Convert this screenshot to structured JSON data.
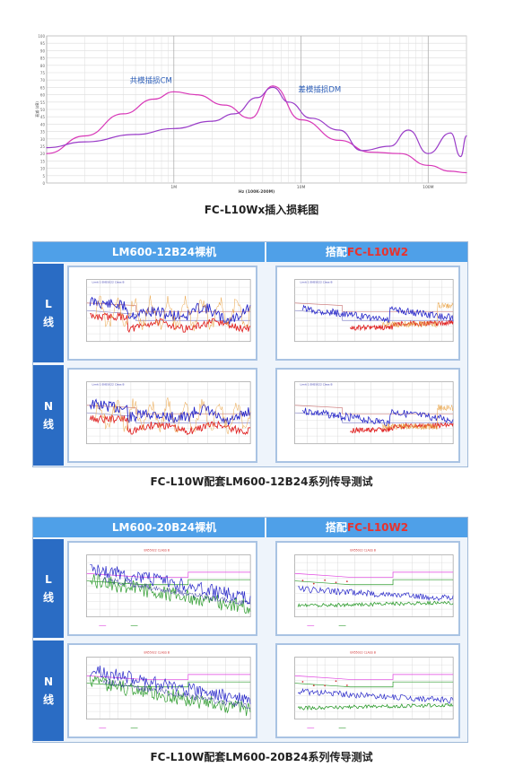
{
  "insertion_loss": {
    "caption": "FC-L10Wx插入损耗图",
    "cm_label": "共模插损CM",
    "dm_label": "差模插损DM",
    "x_label": "Hz (100K-200M)",
    "y_label": "衰减 (dB)",
    "x_ticks": [
      "1M",
      "10M",
      "100M"
    ],
    "y_ticks": [
      "100",
      "95",
      "90",
      "85",
      "80",
      "75",
      "70",
      "65",
      "60",
      "55",
      "50",
      "45",
      "40",
      "35",
      "30",
      "25",
      "20",
      "15",
      "10",
      "5",
      "0"
    ]
  },
  "table1": {
    "caption": "FC-L10W配套LM600-12B24系列传导测试",
    "col1_header": "LM600-12B24裸机",
    "col2_header_prefix": "搭配",
    "col2_header_model": "FC-L10W2",
    "row1_label": [
      "L",
      "线"
    ],
    "row2_label": [
      "N",
      "线"
    ]
  },
  "table2": {
    "caption": "FC-L10W配套LM600-20B24系列传导测试",
    "col1_header": "LM600-20B24裸机",
    "col2_header_prefix": "搭配",
    "col2_header_model": "FC-L10W2",
    "row1_label": [
      "L",
      "线"
    ],
    "row2_label": [
      "N",
      "线"
    ]
  },
  "colors": {
    "cm_curve": "#d838b8",
    "dm_curve": "#9a3cc8",
    "header_bg": "#4fa0e8",
    "row_head_bg": "#2a6cc4",
    "model_red": "#e8322e",
    "peak_blue": "#2323c8",
    "avg_red": "#e02020",
    "avg_green": "#2a9a2a"
  },
  "chart_data": {
    "type": "line",
    "title": "",
    "xlabel": "Hz (100K-200M)",
    "ylabel": "衰减 (dB)",
    "x_scale": "log",
    "xlim": [
      100000,
      200000000
    ],
    "ylim": [
      0,
      100
    ],
    "grid": true,
    "series": [
      {
        "name": "共模插损CM",
        "x": [
          100000,
          200000,
          400000,
          700000,
          1000000,
          1500000,
          2500000,
          4000000,
          6000000,
          10000000,
          20000000,
          35000000,
          60000000,
          100000000,
          150000000,
          200000000
        ],
        "y": [
          20,
          32,
          47,
          57,
          62,
          60,
          53,
          44,
          66,
          43,
          29,
          21,
          20,
          12,
          8,
          7
        ]
      },
      {
        "name": "差模插损DM",
        "x": [
          100000,
          200000,
          500000,
          1000000,
          2000000,
          3000000,
          4500000,
          6000000,
          8000000,
          12000000,
          20000000,
          30000000,
          50000000,
          70000000,
          100000000,
          150000000,
          180000000,
          200000000
        ],
        "y": [
          24,
          28,
          33,
          37,
          42,
          47,
          58,
          65,
          55,
          44,
          36,
          22,
          25,
          36,
          20,
          34,
          18,
          32
        ]
      }
    ]
  }
}
